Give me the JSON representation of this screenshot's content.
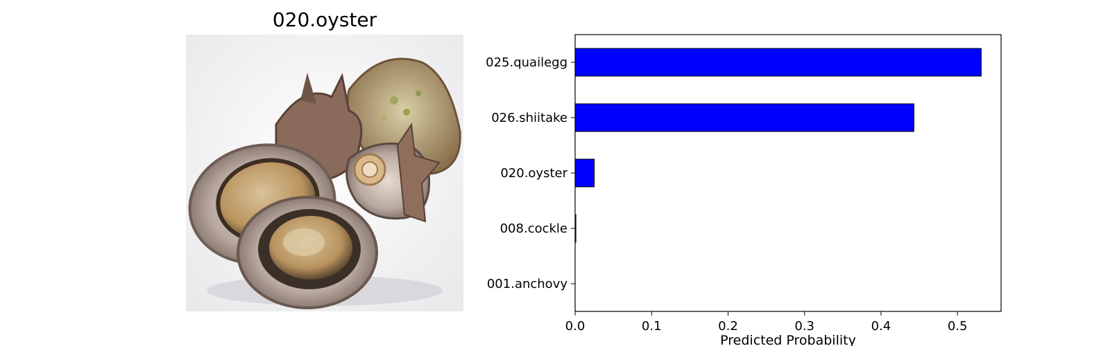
{
  "image_panel": {
    "title": "020.oyster",
    "subject_icon": "abalone-shells-photo"
  },
  "chart_data": {
    "type": "bar",
    "orientation": "horizontal",
    "categories": [
      "025.quailegg",
      "026.shiitake",
      "020.oyster",
      "008.cockle",
      "001.anchovy"
    ],
    "values": [
      0.531,
      0.443,
      0.025,
      0.001,
      0.0
    ],
    "xlabel": "Predicted Probability",
    "ylabel": "",
    "title": "",
    "xlim": [
      0,
      0.557
    ],
    "xticks": [
      0.0,
      0.1,
      0.2,
      0.3,
      0.4,
      0.5
    ],
    "xtick_labels": [
      "0.0",
      "0.1",
      "0.2",
      "0.3",
      "0.4",
      "0.5"
    ],
    "grid": false,
    "bar_color": "#0000ff",
    "edge_color": "#000000"
  }
}
